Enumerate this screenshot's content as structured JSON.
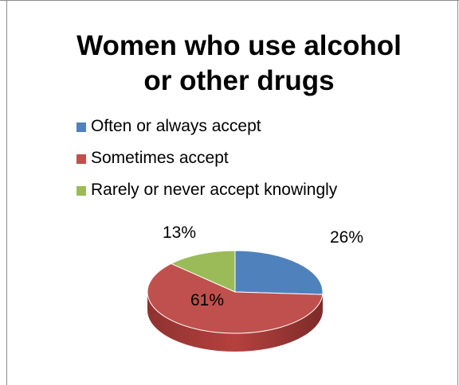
{
  "chart_data": {
    "type": "pie",
    "title_lines": [
      "Women who use alcohol",
      "or other drugs"
    ],
    "categories": [
      "Often or always accept",
      "Sometimes accept",
      "Rarely or never accept knowingly"
    ],
    "values": [
      26,
      61,
      13
    ],
    "data_labels": [
      "26%",
      "61%",
      "13%"
    ],
    "colors": [
      "#4f81bd",
      "#c0504d",
      "#9bbb59"
    ],
    "legend_position": "top",
    "style": "3d"
  }
}
